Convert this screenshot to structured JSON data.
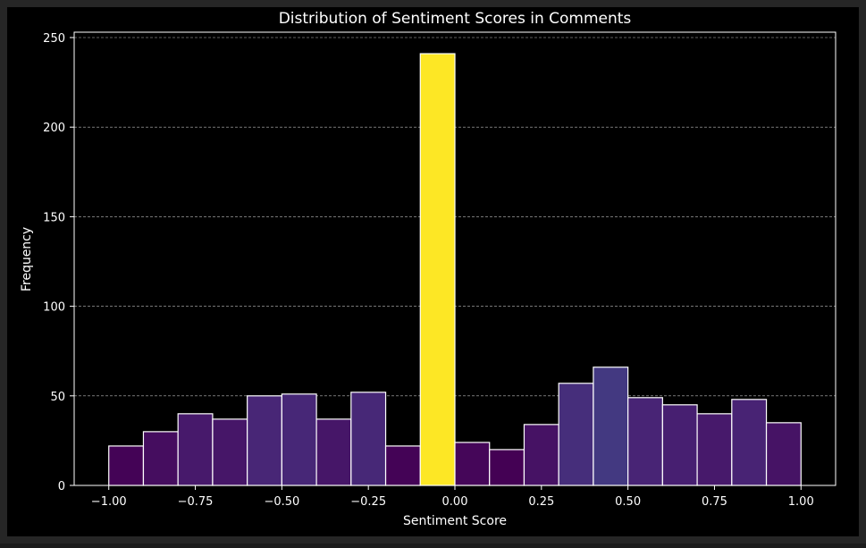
{
  "chart_data": {
    "type": "bar",
    "title": "Distribution of Sentiment Scores in Comments",
    "xlabel": "Sentiment Score",
    "ylabel": "Frequency",
    "xlim": [
      -1.1,
      1.1
    ],
    "ylim": [
      0,
      253
    ],
    "xticks": [
      -1.0,
      -0.75,
      -0.5,
      -0.25,
      0.0,
      0.25,
      0.5,
      0.75,
      1.0
    ],
    "xtick_labels": [
      "−1.00",
      "−0.75",
      "−0.50",
      "−0.25",
      "0.00",
      "0.25",
      "0.50",
      "0.75",
      "1.00"
    ],
    "yticks": [
      0,
      50,
      100,
      150,
      200,
      250
    ],
    "ytick_labels": [
      "0",
      "50",
      "100",
      "150",
      "200",
      "250"
    ],
    "grid": {
      "y": true,
      "x": false,
      "style": "dashed"
    },
    "bin_edges": [
      -1.0,
      -0.9,
      -0.8,
      -0.7,
      -0.6,
      -0.5,
      -0.4,
      -0.3,
      -0.2,
      -0.1,
      0.0,
      0.1,
      0.2,
      0.3,
      0.4,
      0.5,
      0.6,
      0.7,
      0.8,
      0.9,
      1.0
    ],
    "values": [
      22,
      30,
      40,
      37,
      50,
      51,
      37,
      52,
      22,
      241,
      24,
      20,
      34,
      57,
      66,
      49,
      45,
      40,
      48,
      35
    ],
    "colormap": "viridis",
    "bar_edge_color": "#ffffff",
    "background_color": "#000000"
  }
}
